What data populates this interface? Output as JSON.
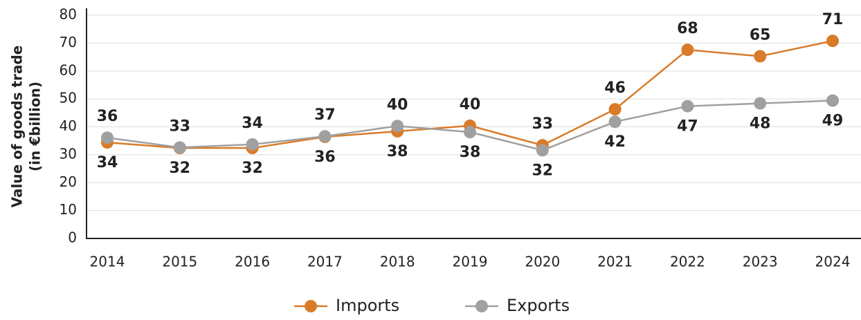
{
  "chart_data": {
    "type": "line",
    "ylabel": [
      "Value of goods trade",
      "(in €billion)"
    ],
    "categories": [
      "2014",
      "2015",
      "2016",
      "2017",
      "2018",
      "2019",
      "2020",
      "2021",
      "2022",
      "2023",
      "2024"
    ],
    "series": [
      {
        "name": "Imports",
        "color": "#d97b29",
        "values": [
          34.4,
          32.4,
          32.4,
          36.4,
          38.4,
          40.4,
          33.4,
          46.3,
          67.6,
          65.3,
          70.8
        ],
        "value_labels": [
          "34",
          "32",
          "32",
          "36",
          "38",
          "40",
          "33",
          "46",
          "68",
          "65",
          "71"
        ]
      },
      {
        "name": "Exports",
        "color": "#a0a0a0",
        "values": [
          36.1,
          32.6,
          33.7,
          36.6,
          40.3,
          38.1,
          31.6,
          41.8,
          47.4,
          48.4,
          49.4
        ],
        "value_labels": [
          "36",
          "33",
          "34",
          "37",
          "40",
          "38",
          "32",
          "42",
          "47",
          "48",
          "49"
        ]
      }
    ],
    "ylim": [
      0,
      80
    ],
    "yticks": [
      0,
      10,
      20,
      30,
      40,
      50,
      60,
      70,
      80
    ],
    "grid": true,
    "legend": "bottom"
  }
}
